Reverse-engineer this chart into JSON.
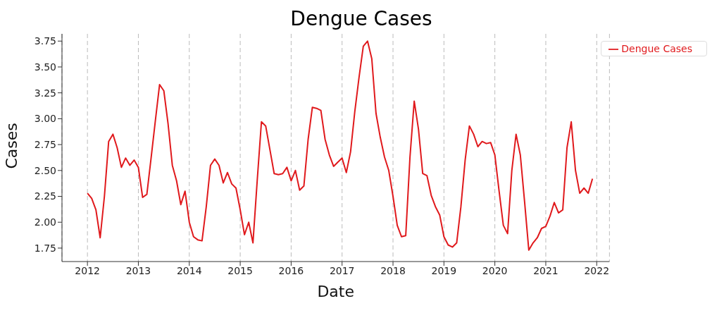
{
  "chart_data": {
    "type": "line",
    "title": "Dengue Cases",
    "xlabel": "Date",
    "ylabel": "Cases",
    "x": [
      "2012-01",
      "2012-02",
      "2012-03",
      "2012-04",
      "2012-05",
      "2012-06",
      "2012-07",
      "2012-08",
      "2012-09",
      "2012-10",
      "2012-11",
      "2012-12",
      "2013-01",
      "2013-02",
      "2013-03",
      "2013-04",
      "2013-05",
      "2013-06",
      "2013-07",
      "2013-08",
      "2013-09",
      "2013-10",
      "2013-11",
      "2013-12",
      "2014-01",
      "2014-02",
      "2014-03",
      "2014-04",
      "2014-05",
      "2014-06",
      "2014-07",
      "2014-08",
      "2014-09",
      "2014-10",
      "2014-11",
      "2014-12",
      "2015-01",
      "2015-02",
      "2015-03",
      "2015-04",
      "2015-05",
      "2015-06",
      "2015-07",
      "2015-08",
      "2015-09",
      "2015-10",
      "2015-11",
      "2015-12",
      "2016-01",
      "2016-02",
      "2016-03",
      "2016-04",
      "2016-05",
      "2016-06",
      "2016-07",
      "2016-08",
      "2016-09",
      "2016-10",
      "2016-11",
      "2016-12",
      "2017-01",
      "2017-02",
      "2017-03",
      "2017-04",
      "2017-05",
      "2017-06",
      "2017-07",
      "2017-08",
      "2017-09",
      "2017-10",
      "2017-11",
      "2017-12",
      "2018-01",
      "2018-02",
      "2018-03",
      "2018-04",
      "2018-05",
      "2018-06",
      "2018-07",
      "2018-08",
      "2018-09",
      "2018-10",
      "2018-11",
      "2018-12",
      "2019-01",
      "2019-02",
      "2019-03",
      "2019-04",
      "2019-05",
      "2019-06",
      "2019-07",
      "2019-08",
      "2019-09",
      "2019-10",
      "2019-11",
      "2019-12",
      "2020-01",
      "2020-02",
      "2020-03",
      "2020-04",
      "2020-05",
      "2020-06",
      "2020-07",
      "2020-08",
      "2020-09",
      "2020-10",
      "2020-11",
      "2020-12",
      "2021-01",
      "2021-02",
      "2021-03",
      "2021-04",
      "2021-05",
      "2021-06",
      "2021-07",
      "2021-08",
      "2021-09",
      "2021-10",
      "2021-11",
      "2021-12"
    ],
    "series": [
      {
        "name": "Dengue Cases",
        "color": "#e0191c",
        "values": [
          2.28,
          2.23,
          2.12,
          1.85,
          2.25,
          2.78,
          2.85,
          2.72,
          2.53,
          2.62,
          2.55,
          2.6,
          2.53,
          2.24,
          2.27,
          2.62,
          2.98,
          3.33,
          3.27,
          2.95,
          2.55,
          2.4,
          2.17,
          2.3,
          2.0,
          1.86,
          1.83,
          1.82,
          2.15,
          2.55,
          2.61,
          2.55,
          2.38,
          2.48,
          2.37,
          2.33,
          2.12,
          1.88,
          2.0,
          1.8,
          2.4,
          2.97,
          2.93,
          2.7,
          2.47,
          2.46,
          2.47,
          2.53,
          2.4,
          2.5,
          2.31,
          2.35,
          2.8,
          3.11,
          3.1,
          3.08,
          2.8,
          2.65,
          2.54,
          2.58,
          2.62,
          2.48,
          2.68,
          3.07,
          3.4,
          3.7,
          3.75,
          3.58,
          3.05,
          2.82,
          2.63,
          2.5,
          2.25,
          1.97,
          1.86,
          1.87,
          2.63,
          3.17,
          2.9,
          2.47,
          2.45,
          2.26,
          2.15,
          2.07,
          1.86,
          1.78,
          1.76,
          1.8,
          2.15,
          2.6,
          2.93,
          2.85,
          2.73,
          2.78,
          2.76,
          2.77,
          2.65,
          2.3,
          1.97,
          1.89,
          2.5,
          2.85,
          2.65,
          2.2,
          1.73,
          1.8,
          1.85,
          1.94,
          1.96,
          2.06,
          2.19,
          2.09,
          2.12,
          2.72,
          2.97,
          2.5,
          2.28,
          2.33,
          2.28,
          2.42
        ]
      }
    ],
    "xlim": [
      "2011-07",
      "2022-04"
    ],
    "xticks": [
      "2012",
      "2013",
      "2014",
      "2015",
      "2016",
      "2017",
      "2018",
      "2019",
      "2020",
      "2021",
      "2022"
    ],
    "ylim": [
      1.62,
      3.82
    ],
    "yticks": [
      1.75,
      {
        "value": 2,
        "label": "2.00"
      },
      2.25,
      {
        "value": 2.5,
        "label": "2.50"
      },
      2.75,
      {
        "value": 3,
        "label": "3.00"
      },
      3.25,
      {
        "value": 3.5,
        "label": "3.50"
      },
      3.75
    ],
    "grid": "x",
    "legend": "top right",
    "marker": "none",
    "line_style": "solid"
  }
}
